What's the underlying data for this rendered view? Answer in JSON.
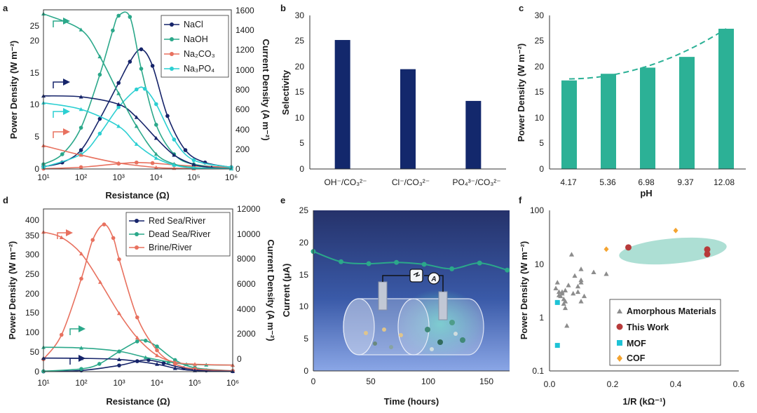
{
  "panels": {
    "a": {
      "label": "a",
      "xlabel": "Resistance (Ω)",
      "ylabel": "Power Density (W m⁻²)",
      "y2label": "Current Density (A m⁻²)",
      "xticks": [
        "10¹",
        "10²",
        "10³",
        "10⁴",
        "10⁵",
        "10⁶"
      ],
      "yticks": [
        "0",
        "5",
        "10",
        "15",
        "20",
        "25"
      ],
      "y2ticks": [
        "0",
        "200",
        "400",
        "600",
        "800",
        "1000",
        "1200",
        "1400",
        "1600"
      ],
      "legend": [
        "NaCl",
        "NaOH",
        "Na₂CO₃",
        "Na₃PO₄"
      ]
    },
    "b": {
      "label": "b",
      "ylabel": "Selectivity",
      "yticks": [
        "0",
        "5",
        "10",
        "15",
        "20",
        "25",
        "30"
      ],
      "categories": [
        "OH⁻/CO₃²⁻",
        "Cl⁻/CO₃²⁻",
        "PO₄³⁻/CO₃²⁻"
      ]
    },
    "c": {
      "label": "c",
      "xlabel": "pH",
      "ylabel": "Power Density (W m⁻²)",
      "yticks": [
        "0",
        "5",
        "10",
        "15",
        "20",
        "25",
        "30"
      ],
      "categories": [
        "4.17",
        "5.36",
        "6.98",
        "9.37",
        "12.08"
      ]
    },
    "d": {
      "label": "d",
      "xlabel": "Resistance (Ω)",
      "ylabel": "Power Density (W m⁻²)",
      "y2label": "Current Density (A m⁻²)",
      "xticks": [
        "10¹",
        "10²",
        "10³",
        "10⁴",
        "10⁵",
        "10⁶"
      ],
      "yticks": [
        "0",
        "50",
        "100",
        "150",
        "200",
        "250",
        "300",
        "350",
        "400"
      ],
      "y2ticks": [
        "0",
        "2000",
        "4000",
        "6000",
        "8000",
        "10000",
        "12000"
      ],
      "legend": [
        "Red Sea/River",
        "Dead Sea/River",
        "Brine/River"
      ]
    },
    "e": {
      "label": "e",
      "xlabel": "Time (hours)",
      "ylabel": "Current (μA)",
      "xticks": [
        "0",
        "50",
        "100",
        "150"
      ],
      "yticks": [
        "0",
        "5",
        "10",
        "15",
        "20",
        "25"
      ],
      "inset_icon": "nanofluidic-cell-icon",
      "meter_label": "A"
    },
    "f": {
      "label": "f",
      "xlabel": "1/R (kΩ⁻¹)",
      "ylabel": "Power Density (W m⁻²)",
      "xticks": [
        "0.0",
        "0.2",
        "0.4",
        "0.6"
      ],
      "yticks": [
        "0.1",
        "1",
        "10",
        "100"
      ],
      "legend": [
        "Amorphous Materials",
        "This Work",
        "MOF",
        "COF"
      ]
    }
  },
  "colors": {
    "navy": "#16246a",
    "teal": "#2ba88a",
    "salmon": "#e8715f",
    "cyan": "#2ccfd2",
    "bar_navy": "#13286c",
    "bar_teal": "#2cb196",
    "grey": "#8c8c8c",
    "red": "#b73a3a",
    "mof": "#1ec3d6",
    "cof": "#f4a430",
    "ellipse": "#9fd9cc"
  },
  "chart_data": [
    {
      "panel": "a",
      "type": "line",
      "xscale": "log",
      "xlim": [
        10,
        1000000
      ],
      "ylim": [
        0,
        27
      ],
      "y2lim": [
        0,
        1600
      ],
      "series": [
        {
          "name": "NaCl",
          "axis": "power",
          "color": "#16246a",
          "x": [
            10,
            31.6,
            100,
            316,
            1000,
            2000,
            4000,
            8000,
            20000,
            60000,
            200000,
            1000000
          ],
          "y": [
            0.4,
            1.1,
            3.2,
            8.5,
            14.6,
            18.2,
            20.3,
            17.5,
            9,
            3.2,
            1.1,
            0.3
          ]
        },
        {
          "name": "NaOH",
          "axis": "power",
          "color": "#2ba88a",
          "x": [
            10,
            31.6,
            100,
            316,
            700,
            1000,
            2000,
            4000,
            10000,
            30000,
            100000,
            1000000
          ],
          "y": [
            0.8,
            2.5,
            7,
            16,
            23.5,
            26,
            25.8,
            17,
            7.5,
            2.5,
            0.8,
            0.2
          ]
        },
        {
          "name": "Na₂CO₃",
          "axis": "power",
          "color": "#e8715f",
          "x": [
            10,
            100,
            1000,
            3000,
            8000,
            30000,
            100000,
            1000000
          ],
          "y": [
            0.05,
            0.3,
            0.9,
            1.1,
            1,
            0.7,
            0.5,
            0.3
          ]
        },
        {
          "name": "Na₃PO₄",
          "axis": "power",
          "color": "#2ccfd2",
          "x": [
            10,
            100,
            316,
            1000,
            3000,
            5000,
            10000,
            30000,
            100000,
            1000000
          ],
          "y": [
            0.3,
            2.5,
            6,
            10.5,
            13.5,
            13.6,
            11,
            5,
            1.5,
            0.3
          ]
        },
        {
          "name": "NaCl current",
          "axis": "current",
          "color": "#16246a",
          "x": [
            10,
            100,
            1000,
            3000,
            10000,
            30000,
            100000,
            300000,
            1000000
          ],
          "y": [
            735,
            725,
            650,
            520,
            310,
            140,
            45,
            15,
            5
          ]
        },
        {
          "name": "NaOH current",
          "axis": "current",
          "color": "#2ba88a",
          "x": [
            10,
            100,
            316,
            1000,
            3000,
            10000,
            30000,
            100000,
            1000000
          ],
          "y": [
            1560,
            1400,
            1130,
            760,
            430,
            150,
            50,
            15,
            5
          ]
        },
        {
          "name": "Na₂CO₃ current",
          "axis": "current",
          "color": "#e8715f",
          "x": [
            10,
            100,
            1000,
            10000,
            30000,
            100000,
            1000000
          ],
          "y": [
            235,
            140,
            60,
            15,
            8,
            4,
            2
          ]
        },
        {
          "name": "Na₃PO₄ current",
          "axis": "current",
          "color": "#2ccfd2",
          "x": [
            10,
            100,
            1000,
            3000,
            10000,
            30000,
            100000,
            1000000
          ],
          "y": [
            665,
            600,
            430,
            250,
            110,
            40,
            10,
            3
          ]
        }
      ]
    },
    {
      "panel": "b",
      "type": "bar",
      "ylim": [
        0,
        30
      ],
      "categories": [
        "OH⁻/CO₃²⁻",
        "Cl⁻/CO₃²⁻",
        "PO₄³⁻/CO₃²⁻"
      ],
      "values": [
        25.2,
        19.5,
        13.3
      ]
    },
    {
      "panel": "c",
      "type": "bar",
      "ylim": [
        0,
        30
      ],
      "categories": [
        "4.17",
        "5.36",
        "6.98",
        "9.37",
        "12.08"
      ],
      "values": [
        17.3,
        18.6,
        19.8,
        21.9,
        27.4
      ],
      "trend": "dashed quadratic fit"
    },
    {
      "panel": "d",
      "type": "line",
      "xscale": "log",
      "xlim": [
        10,
        1000000
      ],
      "ylim": [
        0,
        420
      ],
      "y2lim": [
        0,
        12000
      ],
      "series": [
        {
          "name": "Red Sea/River",
          "axis": "power",
          "color": "#16246a",
          "x": [
            10,
            100,
            1000,
            3000,
            6000,
            15000,
            50000,
            200000,
            1000000
          ],
          "y": [
            0.5,
            3,
            16,
            27,
            30,
            22,
            9,
            3,
            1
          ]
        },
        {
          "name": "Dead Sea/River",
          "axis": "power",
          "color": "#2ba88a",
          "x": [
            10,
            100,
            300,
            1000,
            3000,
            5000,
            10000,
            30000,
            100000,
            1000000
          ],
          "y": [
            1,
            7,
            20,
            52,
            78,
            80,
            65,
            30,
            10,
            2
          ]
        },
        {
          "name": "Brine/River",
          "axis": "power",
          "color": "#e8715f",
          "x": [
            10,
            30,
            100,
            200,
            400,
            700,
            1000,
            3000,
            10000,
            30000,
            100000,
            1000000
          ],
          "y": [
            32,
            95,
            240,
            340,
            380,
            345,
            290,
            140,
            55,
            20,
            7,
            2
          ]
        },
        {
          "name": "Red Sea/River current",
          "axis": "current",
          "color": "#16246a",
          "x": [
            10,
            100,
            1000,
            10000,
            30000,
            100000,
            1000000
          ],
          "y": [
            1000,
            980,
            900,
            550,
            250,
            80,
            20
          ]
        },
        {
          "name": "Dead Sea/River current",
          "axis": "current",
          "color": "#2ba88a",
          "x": [
            10,
            100,
            1000,
            5000,
            20000,
            60000,
            200000,
            1000000
          ],
          "y": [
            1800,
            1750,
            1500,
            1050,
            720,
            540,
            500,
            480
          ]
        },
        {
          "name": "Brine/River current",
          "axis": "current",
          "color": "#e8715f",
          "x": [
            10,
            30,
            100,
            316,
            1000,
            3000,
            10000,
            30000,
            100000,
            1000000
          ],
          "y": [
            10300,
            9900,
            8700,
            6600,
            4300,
            2500,
            1200,
            700,
            550,
            480
          ]
        }
      ]
    },
    {
      "panel": "e",
      "type": "line",
      "xlim": [
        0,
        170
      ],
      "ylim": [
        0,
        25
      ],
      "series": [
        {
          "name": "Current",
          "color": "#2ba88a",
          "x": [
            0,
            24,
            48,
            72,
            96,
            120,
            144,
            168
          ],
          "y": [
            18.6,
            17,
            16.7,
            16.9,
            16.6,
            15.9,
            16.8,
            15.7
          ]
        }
      ]
    },
    {
      "panel": "f",
      "type": "scatter",
      "xlim": [
        0,
        0.6
      ],
      "ylim": [
        0.1,
        100
      ],
      "yscale": "log",
      "series": [
        {
          "name": "Amorphous Materials",
          "marker": "triangle",
          "color": "#8c8c8c",
          "x": [
            0.02,
            0.025,
            0.03,
            0.035,
            0.04,
            0.045,
            0.05,
            0.05,
            0.055,
            0.06,
            0.07,
            0.075,
            0.08,
            0.09,
            0.1,
            0.1,
            0.1,
            0.1,
            0.11,
            0.14,
            0.18,
            0.05,
            0.04,
            0.03,
            0.045,
            0.09
          ],
          "y": [
            3.5,
            4.5,
            3,
            2.5,
            3,
            2.2,
            2,
            1.5,
            0.7,
            4,
            15,
            2.8,
            6,
            3.8,
            2,
            5,
            8,
            4.5,
            2.5,
            7,
            6.5,
            3.2,
            2.8,
            2.6,
            1.8,
            3
          ]
        },
        {
          "name": "This Work",
          "marker": "circle",
          "color": "#b73a3a",
          "x": [
            0.25,
            0.5,
            0.5
          ],
          "y": [
            20.3,
            18.6,
            15.2
          ]
        },
        {
          "name": "MOF",
          "marker": "square",
          "color": "#1ec3d6",
          "x": [
            0.025,
            0.025
          ],
          "y": [
            1.9,
            0.3
          ]
        },
        {
          "name": "COF",
          "marker": "diamond",
          "color": "#f4a430",
          "x": [
            0.18,
            0.4
          ],
          "y": [
            18.8,
            42
          ]
        }
      ]
    }
  ]
}
